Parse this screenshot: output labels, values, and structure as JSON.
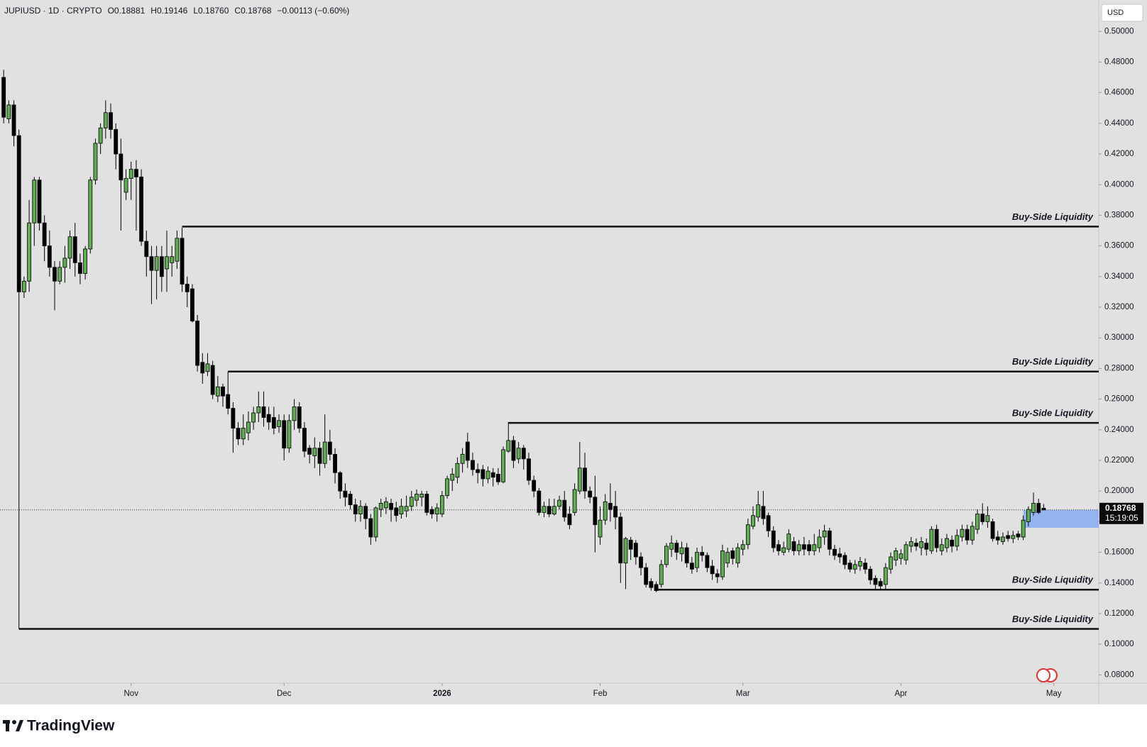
{
  "chart_data": {
    "type": "candlestick",
    "header": {
      "symbol": "JUPIUSD · 1D · CRYPTO",
      "open": "O0.18881",
      "high": "H0.19146",
      "low": "L0.18760",
      "close": "C0.18768",
      "change": "−0.00113 (−0.60%)"
    },
    "currency": "USD",
    "brand": "TradingView",
    "up_color": "#5fae52",
    "down_color": "#000000",
    "xlim": [
      -0.72,
      214.8
    ],
    "xticks": [
      {
        "value": 25,
        "label": "Nov"
      },
      {
        "value": 55,
        "label": "Dec"
      },
      {
        "value": 86,
        "label": "2026"
      },
      {
        "value": 117,
        "label": "Feb"
      },
      {
        "value": 145,
        "label": "Mar"
      },
      {
        "value": 176,
        "label": "Apr"
      },
      {
        "value": 206,
        "label": "May"
      }
    ],
    "ylim": [
      0.0746,
      0.5205
    ],
    "yticks": [
      {
        "value": 0.08,
        "label": "0.08000"
      },
      {
        "value": 0.1,
        "label": "0.10000"
      },
      {
        "value": 0.12,
        "label": "0.12000"
      },
      {
        "value": 0.14,
        "label": "0.14000"
      },
      {
        "value": 0.16,
        "label": "0.16000"
      },
      {
        "value": 0.18,
        "label": "0.18000"
      },
      {
        "value": 0.2,
        "label": "0.20000"
      },
      {
        "value": 0.22,
        "label": "0.22000"
      },
      {
        "value": 0.24,
        "label": "0.24000"
      },
      {
        "value": 0.26,
        "label": "0.26000"
      },
      {
        "value": 0.28,
        "label": "0.28000"
      },
      {
        "value": 0.3,
        "label": "0.30000"
      },
      {
        "value": 0.32,
        "label": "0.32000"
      },
      {
        "value": 0.34,
        "label": "0.34000"
      },
      {
        "value": 0.36,
        "label": "0.36000"
      },
      {
        "value": 0.38,
        "label": "0.38000"
      },
      {
        "value": 0.4,
        "label": "0.40000"
      },
      {
        "value": 0.42,
        "label": "0.42000"
      },
      {
        "value": 0.44,
        "label": "0.44000"
      },
      {
        "value": 0.46,
        "label": "0.46000"
      },
      {
        "value": 0.48,
        "label": "0.48000"
      },
      {
        "value": 0.5,
        "label": "0.50000"
      }
    ],
    "grid": false,
    "last_price": {
      "value": 0.18768,
      "label": "0.18768"
    },
    "countdown": "15:19:05",
    "levels": [
      {
        "label": "Buy-Side Liquidity",
        "value": 0.3726,
        "start": 35
      },
      {
        "label": "Buy-Side Liquidity",
        "value": 0.278,
        "start": 44
      },
      {
        "label": "Buy-Side Liquidity",
        "value": 0.2445,
        "start": 99
      },
      {
        "label": "Buy-Side Liquidity",
        "value": 0.1356,
        "start": 128
      },
      {
        "label": "Buy-Side Liquidity",
        "value": 0.11,
        "start": 3
      }
    ],
    "zones": [
      {
        "start": 200,
        "top": 0.1877,
        "bottom": 0.176,
        "color": "#93b4ee"
      }
    ],
    "open": [
      0.47,
      0.443,
      0.452,
      0.432,
      0.33,
      0.337,
      0.375,
      0.403,
      0.375,
      0.36,
      0.346,
      0.337,
      0.346,
      0.352,
      0.366,
      0.349,
      0.342,
      0.358,
      0.403,
      0.427,
      0.437,
      0.447,
      0.436,
      0.42,
      0.395,
      0.404,
      0.41,
      0.405,
      0.363,
      0.353,
      0.344,
      0.353,
      0.345,
      0.349,
      0.35,
      0.365,
      0.335,
      0.332,
      0.311,
      0.284,
      0.278,
      0.282,
      0.262,
      0.268,
      0.263,
      0.254,
      0.241,
      0.234,
      0.238,
      0.245,
      0.251,
      0.255,
      0.25,
      0.248,
      0.242,
      0.246,
      0.228,
      0.246,
      0.255,
      0.241,
      0.228,
      0.223,
      0.228,
      0.218,
      0.232,
      0.224,
      0.212,
      0.2,
      0.198,
      0.191,
      0.185,
      0.19,
      0.182,
      0.17,
      0.188,
      0.189,
      0.192,
      0.189,
      0.185,
      0.187,
      0.19,
      0.194,
      0.196,
      0.198,
      0.188,
      0.185,
      0.185,
      0.197,
      0.207,
      0.209,
      0.218,
      0.232,
      0.22,
      0.214,
      0.214,
      0.208,
      0.212,
      0.211,
      0.206,
      0.226,
      0.233,
      0.221,
      0.228,
      0.221,
      0.207,
      0.2,
      0.186,
      0.19,
      0.185,
      0.19,
      0.194,
      0.185,
      0.186,
      0.2,
      0.215,
      0.2,
      0.196,
      0.17,
      0.181,
      0.192,
      0.19,
      0.183,
      0.153,
      0.168,
      0.166,
      0.157,
      0.15,
      0.141,
      0.139,
      0.139,
      0.152,
      0.162,
      0.166,
      0.159,
      0.163,
      0.153,
      0.15,
      0.16,
      0.158,
      0.151,
      0.146,
      0.144,
      0.153,
      0.161,
      0.153,
      0.162,
      0.165,
      0.177,
      0.183,
      0.19,
      0.184,
      0.174,
      0.165,
      0.16,
      0.162,
      0.167,
      0.161,
      0.165,
      0.165,
      0.161,
      0.163,
      0.17,
      0.174,
      0.162,
      0.159,
      0.158,
      0.153,
      0.149,
      0.151,
      0.153,
      0.149,
      0.143,
      0.141,
      0.139,
      0.149,
      0.155,
      0.156,
      0.155,
      0.164,
      0.166,
      0.163,
      0.166,
      0.161,
      0.175,
      0.161,
      0.163,
      0.168,
      0.164,
      0.17,
      0.175,
      0.168,
      0.175,
      0.185,
      0.18,
      0.18,
      0.17,
      0.167,
      0.171,
      0.169,
      0.172,
      0.17,
      0.18,
      0.186,
      0.192,
      0.18881
    ],
    "high": [
      0.475,
      0.455,
      0.455,
      0.436,
      0.34,
      0.39,
      0.405,
      0.405,
      0.38,
      0.37,
      0.35,
      0.35,
      0.36,
      0.37,
      0.375,
      0.355,
      0.36,
      0.405,
      0.43,
      0.44,
      0.455,
      0.453,
      0.44,
      0.43,
      0.41,
      0.415,
      0.416,
      0.41,
      0.37,
      0.36,
      0.36,
      0.36,
      0.37,
      0.36,
      0.37,
      0.372,
      0.34,
      0.335,
      0.315,
      0.29,
      0.29,
      0.285,
      0.275,
      0.27,
      0.278,
      0.258,
      0.245,
      0.25,
      0.252,
      0.255,
      0.265,
      0.265,
      0.255,
      0.255,
      0.25,
      0.25,
      0.25,
      0.26,
      0.258,
      0.245,
      0.23,
      0.235,
      0.232,
      0.25,
      0.24,
      0.228,
      0.213,
      0.205,
      0.2,
      0.195,
      0.194,
      0.192,
      0.185,
      0.19,
      0.195,
      0.196,
      0.195,
      0.193,
      0.195,
      0.197,
      0.2,
      0.201,
      0.2,
      0.2,
      0.19,
      0.192,
      0.2,
      0.21,
      0.215,
      0.222,
      0.228,
      0.238,
      0.225,
      0.218,
      0.217,
      0.216,
      0.215,
      0.215,
      0.229,
      0.245,
      0.236,
      0.232,
      0.23,
      0.225,
      0.21,
      0.202,
      0.193,
      0.195,
      0.195,
      0.197,
      0.2,
      0.19,
      0.205,
      0.232,
      0.225,
      0.203,
      0.21,
      0.19,
      0.198,
      0.205,
      0.2,
      0.186,
      0.17,
      0.17,
      0.168,
      0.16,
      0.153,
      0.143,
      0.141,
      0.155,
      0.166,
      0.171,
      0.168,
      0.167,
      0.166,
      0.157,
      0.163,
      0.164,
      0.16,
      0.155,
      0.149,
      0.165,
      0.163,
      0.163,
      0.166,
      0.168,
      0.182,
      0.19,
      0.2,
      0.2,
      0.186,
      0.177,
      0.168,
      0.167,
      0.175,
      0.17,
      0.168,
      0.17,
      0.168,
      0.172,
      0.175,
      0.178,
      0.176,
      0.165,
      0.163,
      0.16,
      0.155,
      0.155,
      0.157,
      0.156,
      0.151,
      0.145,
      0.143,
      0.153,
      0.16,
      0.163,
      0.162,
      0.167,
      0.17,
      0.169,
      0.17,
      0.169,
      0.177,
      0.178,
      0.169,
      0.172,
      0.171,
      0.175,
      0.178,
      0.178,
      0.18,
      0.188,
      0.192,
      0.19,
      0.182,
      0.174,
      0.173,
      0.174,
      0.174,
      0.174,
      0.184,
      0.19,
      0.199,
      0.195,
      0.19146
    ],
    "low": [
      0.44,
      0.44,
      0.425,
      0.11,
      0.326,
      0.33,
      0.36,
      0.37,
      0.35,
      0.34,
      0.318,
      0.335,
      0.336,
      0.345,
      0.34,
      0.335,
      0.338,
      0.355,
      0.4,
      0.42,
      0.43,
      0.43,
      0.41,
      0.37,
      0.39,
      0.39,
      0.37,
      0.36,
      0.34,
      0.322,
      0.325,
      0.33,
      0.33,
      0.34,
      0.345,
      0.33,
      0.32,
      0.31,
      0.278,
      0.27,
      0.275,
      0.26,
      0.258,
      0.255,
      0.25,
      0.225,
      0.23,
      0.23,
      0.233,
      0.24,
      0.245,
      0.242,
      0.24,
      0.237,
      0.238,
      0.22,
      0.225,
      0.24,
      0.238,
      0.222,
      0.218,
      0.215,
      0.21,
      0.215,
      0.22,
      0.205,
      0.195,
      0.19,
      0.188,
      0.18,
      0.18,
      0.175,
      0.165,
      0.167,
      0.183,
      0.185,
      0.18,
      0.18,
      0.182,
      0.183,
      0.187,
      0.19,
      0.19,
      0.184,
      0.182,
      0.18,
      0.183,
      0.195,
      0.2,
      0.205,
      0.212,
      0.215,
      0.21,
      0.205,
      0.203,
      0.205,
      0.203,
      0.204,
      0.205,
      0.225,
      0.215,
      0.218,
      0.214,
      0.204,
      0.196,
      0.184,
      0.183,
      0.183,
      0.184,
      0.188,
      0.18,
      0.175,
      0.184,
      0.198,
      0.195,
      0.192,
      0.16,
      0.165,
      0.178,
      0.18,
      0.175,
      0.14,
      0.136,
      0.155,
      0.152,
      0.145,
      0.137,
      0.135,
      0.134,
      0.137,
      0.15,
      0.157,
      0.155,
      0.154,
      0.15,
      0.146,
      0.147,
      0.154,
      0.147,
      0.142,
      0.14,
      0.142,
      0.15,
      0.152,
      0.15,
      0.158,
      0.162,
      0.175,
      0.18,
      0.178,
      0.17,
      0.16,
      0.158,
      0.158,
      0.16,
      0.158,
      0.158,
      0.158,
      0.158,
      0.158,
      0.16,
      0.165,
      0.158,
      0.155,
      0.153,
      0.149,
      0.147,
      0.146,
      0.148,
      0.146,
      0.139,
      0.136,
      0.136,
      0.136,
      0.146,
      0.151,
      0.152,
      0.152,
      0.16,
      0.161,
      0.158,
      0.158,
      0.159,
      0.16,
      0.158,
      0.16,
      0.16,
      0.161,
      0.167,
      0.165,
      0.165,
      0.172,
      0.178,
      0.176,
      0.167,
      0.165,
      0.165,
      0.167,
      0.166,
      0.168,
      0.168,
      0.177,
      0.184,
      0.185,
      0.1876
    ],
    "close": [
      0.444,
      0.452,
      0.432,
      0.33,
      0.337,
      0.375,
      0.403,
      0.375,
      0.36,
      0.346,
      0.337,
      0.346,
      0.352,
      0.366,
      0.349,
      0.342,
      0.358,
      0.403,
      0.427,
      0.437,
      0.447,
      0.436,
      0.42,
      0.403,
      0.404,
      0.41,
      0.405,
      0.363,
      0.353,
      0.344,
      0.353,
      0.34,
      0.353,
      0.353,
      0.365,
      0.335,
      0.33,
      0.311,
      0.282,
      0.277,
      0.283,
      0.263,
      0.268,
      0.262,
      0.254,
      0.241,
      0.234,
      0.241,
      0.245,
      0.251,
      0.255,
      0.248,
      0.245,
      0.241,
      0.246,
      0.228,
      0.246,
      0.255,
      0.241,
      0.226,
      0.224,
      0.228,
      0.218,
      0.232,
      0.224,
      0.212,
      0.2,
      0.196,
      0.191,
      0.185,
      0.19,
      0.182,
      0.17,
      0.189,
      0.192,
      0.193,
      0.188,
      0.184,
      0.19,
      0.19,
      0.196,
      0.198,
      0.198,
      0.186,
      0.185,
      0.189,
      0.197,
      0.208,
      0.211,
      0.218,
      0.224,
      0.22,
      0.214,
      0.212,
      0.208,
      0.213,
      0.209,
      0.206,
      0.227,
      0.233,
      0.22,
      0.228,
      0.221,
      0.207,
      0.2,
      0.186,
      0.19,
      0.185,
      0.19,
      0.194,
      0.183,
      0.178,
      0.201,
      0.215,
      0.2,
      0.196,
      0.178,
      0.181,
      0.193,
      0.188,
      0.183,
      0.153,
      0.169,
      0.162,
      0.157,
      0.15,
      0.139,
      0.137,
      0.135,
      0.152,
      0.164,
      0.166,
      0.16,
      0.163,
      0.153,
      0.149,
      0.16,
      0.158,
      0.15,
      0.146,
      0.144,
      0.161,
      0.16,
      0.156,
      0.163,
      0.165,
      0.178,
      0.184,
      0.191,
      0.182,
      0.174,
      0.163,
      0.161,
      0.163,
      0.172,
      0.161,
      0.165,
      0.162,
      0.161,
      0.165,
      0.17,
      0.174,
      0.162,
      0.158,
      0.157,
      0.152,
      0.149,
      0.152,
      0.154,
      0.149,
      0.142,
      0.139,
      0.138,
      0.15,
      0.157,
      0.161,
      0.159,
      0.165,
      0.167,
      0.164,
      0.167,
      0.162,
      0.175,
      0.163,
      0.165,
      0.169,
      0.164,
      0.171,
      0.175,
      0.168,
      0.177,
      0.185,
      0.18,
      0.184,
      0.169,
      0.168,
      0.17,
      0.169,
      0.171,
      0.17,
      0.181,
      0.188,
      0.192,
      0.186,
      0.18768
    ]
  }
}
